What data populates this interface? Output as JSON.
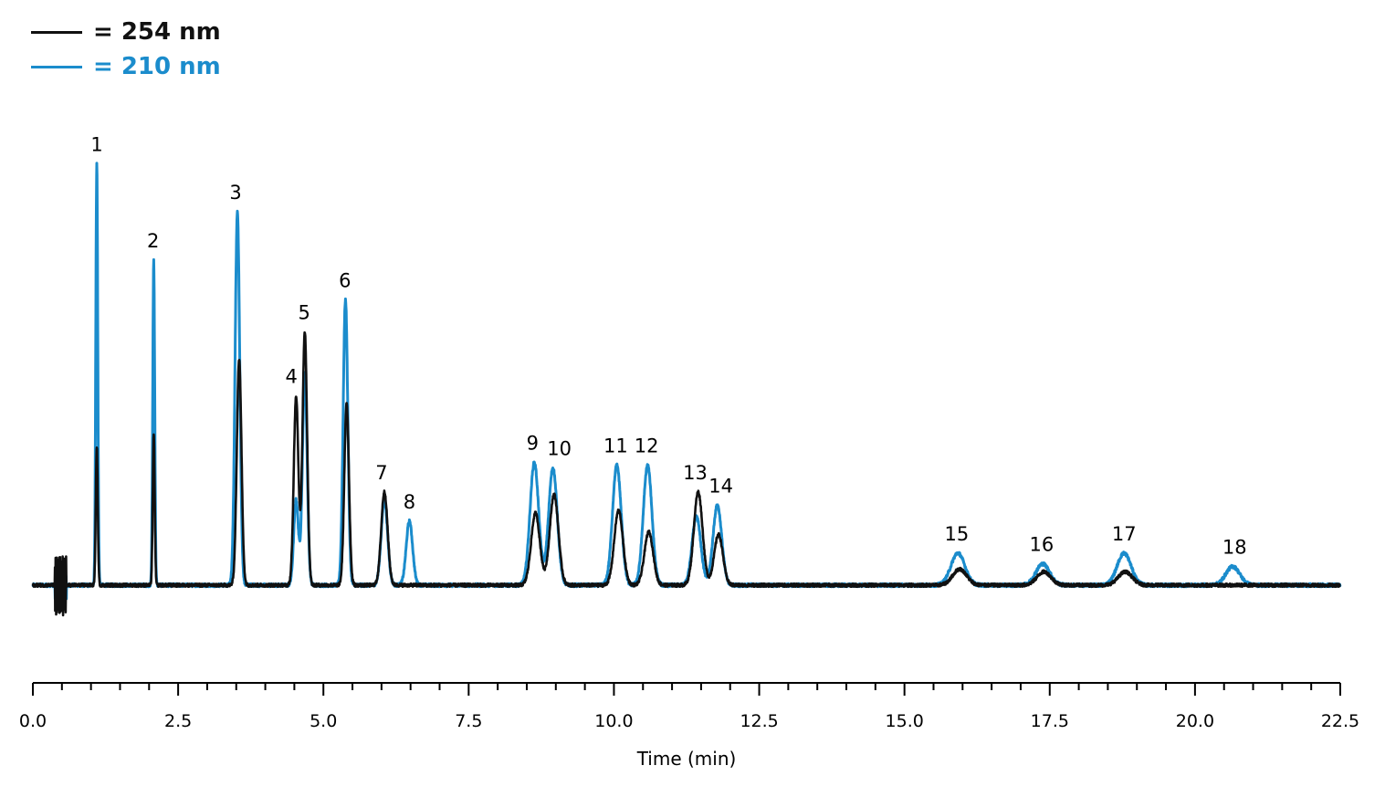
{
  "chart_data": {
    "type": "line",
    "title": "",
    "xlabel": "Time (min)",
    "ylabel": "",
    "xlim": [
      0,
      22.5
    ],
    "x_ticks": [
      "0.0",
      "2.5",
      "5.0",
      "7.5",
      "10.0",
      "12.5",
      "15.0",
      "17.5",
      "20.0",
      "22.5"
    ],
    "x_tick_values": [
      0,
      2.5,
      5,
      7.5,
      10,
      12.5,
      15,
      17.5,
      20,
      22.5
    ],
    "y_axis_shown": false,
    "grid": false,
    "legend_placement": "top-left",
    "series": [
      {
        "name": "= 254 nm",
        "color": "#111111",
        "peaks": [
          {
            "id": "1",
            "rt": 1.1,
            "height": 0.52
          },
          {
            "id": "2",
            "rt": 2.08,
            "height": 0.57
          },
          {
            "id": "3",
            "rt": 3.55,
            "height": 0.85
          },
          {
            "id": "4",
            "rt": 4.53,
            "height": 0.71
          },
          {
            "id": "5",
            "rt": 4.68,
            "height": 0.95
          },
          {
            "id": "6",
            "rt": 5.4,
            "height": 0.68
          },
          {
            "id": "7",
            "rt": 6.05,
            "height": 0.35
          },
          {
            "id": "8",
            "rt": 6.48,
            "height": 0.0
          },
          {
            "id": "9",
            "rt": 8.65,
            "height": 0.27
          },
          {
            "id": "10",
            "rt": 8.97,
            "height": 0.34
          },
          {
            "id": "11",
            "rt": 10.08,
            "height": 0.28
          },
          {
            "id": "12",
            "rt": 10.6,
            "height": 0.2
          },
          {
            "id": "13",
            "rt": 11.45,
            "height": 0.35
          },
          {
            "id": "14",
            "rt": 11.8,
            "height": 0.19
          },
          {
            "id": "15",
            "rt": 15.95,
            "height": 0.06
          },
          {
            "id": "16",
            "rt": 17.4,
            "height": 0.05
          },
          {
            "id": "17",
            "rt": 18.8,
            "height": 0.05
          },
          {
            "id": "18",
            "rt": 20.65,
            "height": 0.0
          }
        ]
      },
      {
        "name": "= 210 nm",
        "color": "#1b8ccc",
        "peaks": [
          {
            "id": "1",
            "rt": 1.1,
            "height": 1.58
          },
          {
            "id": "2",
            "rt": 2.08,
            "height": 1.22
          },
          {
            "id": "3",
            "rt": 3.52,
            "height": 1.4
          },
          {
            "id": "4",
            "rt": 4.53,
            "height": 0.32
          },
          {
            "id": "5",
            "rt": 4.68,
            "height": 0.8
          },
          {
            "id": "6",
            "rt": 5.38,
            "height": 1.07
          },
          {
            "id": "7",
            "rt": 6.05,
            "height": 0.32
          },
          {
            "id": "8",
            "rt": 6.48,
            "height": 0.24
          },
          {
            "id": "9",
            "rt": 8.63,
            "height": 0.46
          },
          {
            "id": "10",
            "rt": 8.95,
            "height": 0.44
          },
          {
            "id": "11",
            "rt": 10.05,
            "height": 0.45
          },
          {
            "id": "12",
            "rt": 10.58,
            "height": 0.45
          },
          {
            "id": "13",
            "rt": 11.42,
            "height": 0.26
          },
          {
            "id": "14",
            "rt": 11.78,
            "height": 0.3
          },
          {
            "id": "15",
            "rt": 15.92,
            "height": 0.12
          },
          {
            "id": "16",
            "rt": 17.38,
            "height": 0.08
          },
          {
            "id": "17",
            "rt": 18.78,
            "height": 0.12
          },
          {
            "id": "18",
            "rt": 20.65,
            "height": 0.07
          }
        ]
      }
    ],
    "peak_labels": [
      {
        "text": "1",
        "rt": 1.1
      },
      {
        "text": "2",
        "rt": 2.07
      },
      {
        "text": "3",
        "rt": 3.49
      },
      {
        "text": "4",
        "rt": 4.45
      },
      {
        "text": "5",
        "rt": 4.67
      },
      {
        "text": "6",
        "rt": 5.37
      },
      {
        "text": "7",
        "rt": 6.0
      },
      {
        "text": "8",
        "rt": 6.48
      },
      {
        "text": "9",
        "rt": 8.6
      },
      {
        "text": "10",
        "rt": 9.06
      },
      {
        "text": "11",
        "rt": 10.03
      },
      {
        "text": "12",
        "rt": 10.56
      },
      {
        "text": "13",
        "rt": 11.4
      },
      {
        "text": "14",
        "rt": 11.84
      },
      {
        "text": "15",
        "rt": 15.9
      },
      {
        "text": "16",
        "rt": 17.36
      },
      {
        "text": "17",
        "rt": 18.78
      },
      {
        "text": "18",
        "rt": 20.68
      }
    ]
  }
}
